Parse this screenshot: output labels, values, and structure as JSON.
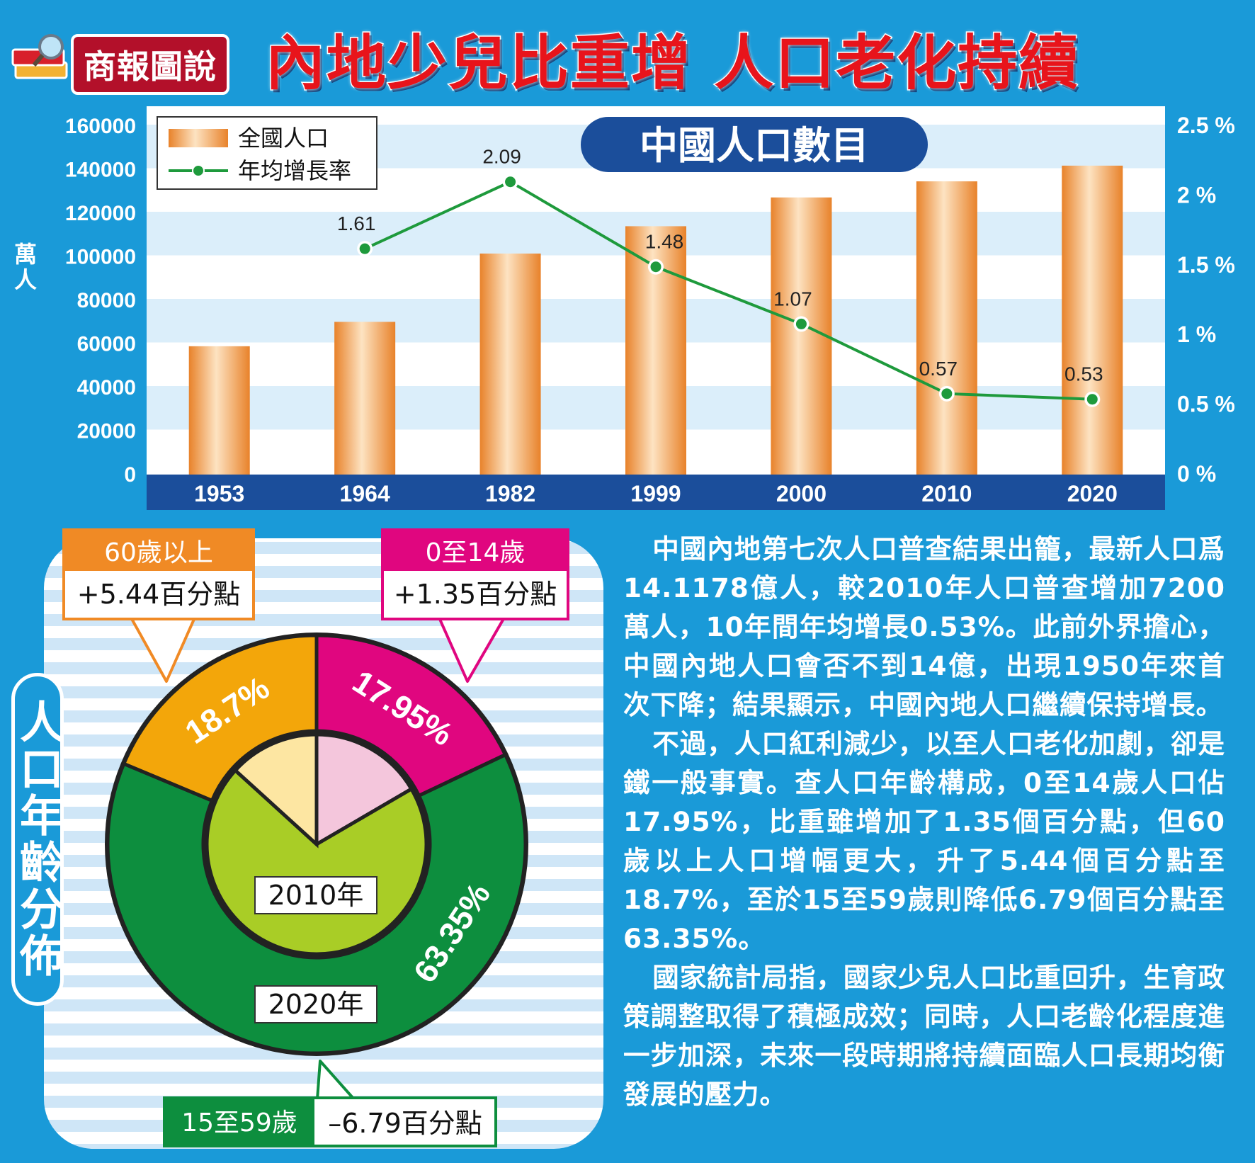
{
  "header": {
    "brand": "商報圖說",
    "title": "內地少兒比重增 人口老化持續"
  },
  "chart_data": [
    {
      "type": "bar",
      "title": "中國人口數目",
      "categories": [
        "1953",
        "1964",
        "1982",
        "1999",
        "2000",
        "2010",
        "2020"
      ],
      "y_left_label": "萬人",
      "y_left_ticks": [
        "0",
        "20000",
        "40000",
        "60000",
        "80000",
        "100000",
        "120000",
        "140000",
        "160000"
      ],
      "y_right_ticks": [
        "0 %",
        "0.5 %",
        "1 %",
        "1.5 %",
        "2 %",
        "2.5 %"
      ],
      "ylim_left": [
        0,
        160000
      ],
      "ylim_right": [
        0,
        2.5
      ],
      "series": [
        {
          "name": "全國人口",
          "type": "bar",
          "axis": "left",
          "values": [
            58260,
            69458,
            100818,
            113368,
            126583,
            133972,
            141178
          ]
        },
        {
          "name": "年均增長率",
          "type": "line",
          "axis": "right",
          "values": [
            null,
            1.61,
            2.09,
            1.48,
            1.07,
            0.57,
            0.53
          ],
          "labels": [
            "",
            "1.61",
            "2.09",
            "1.48",
            "1.07",
            "0.57",
            "0.53"
          ]
        }
      ],
      "legend": "top-left",
      "colors": {
        "bar": "#f0a050",
        "line": "#1e9a3c",
        "axis_bar": "#1b4e9b"
      }
    },
    {
      "type": "pie",
      "title": "人口年齡分佈",
      "rings": [
        {
          "name": "2020年",
          "ring": "outer",
          "slices": [
            {
              "label": "0至14歲",
              "value": 17.95,
              "value_label": "17.95%",
              "color": "#e0067f"
            },
            {
              "label": "15至59歲",
              "value": 63.35,
              "value_label": "63.35%",
              "color": "#0d8e3e"
            },
            {
              "label": "60歲以上",
              "value": 18.7,
              "value_label": "18.7%",
              "color": "#f3a60a"
            }
          ]
        },
        {
          "name": "2010年",
          "ring": "inner",
          "slices": [
            {
              "label": "0至14歲",
              "value": 16.6,
              "color": "#f4c6dc"
            },
            {
              "label": "15至59歲",
              "value": 70.14,
              "color": "#a9cd26"
            },
            {
              "label": "60歲以上",
              "value": 13.26,
              "color": "#fde6a2"
            }
          ]
        }
      ]
    }
  ],
  "callouts": {
    "senior": {
      "title": "60歲以上",
      "value": "+5.44百分點"
    },
    "child": {
      "title": "0至14歲",
      "value": "+1.35百分點"
    },
    "working": {
      "title": "15至59歲",
      "value": "–6.79百分點"
    }
  },
  "article": {
    "paragraphs": [
      "中國內地第七次人口普查結果出籠，最新人口爲14.1178億人，較2010年人口普查增加7200萬人，10年間年均增長0.53%。此前外界擔心，中國內地人口會否不到14億，出現1950年來首次下降；結果顯示，中國內地人口繼續保持增長。",
      "不過，人口紅利減少，以至人口老化加劇，卻是鐵一般事實。查人口年齡構成，0至14歲人口佔17.95%，比重雖增加了1.35個百分點，但60歲以上人口增幅更大，升了5.44個百分點至18.7%，至於15至59歲則降低6.79個百分點至63.35%。",
      "國家統計局指，國家少兒人口比重回升，生育政策調整取得了積極成效；同時，人口老齡化程度進一步加深，未來一段時期將持續面臨人口長期均衡發展的壓力。"
    ]
  }
}
